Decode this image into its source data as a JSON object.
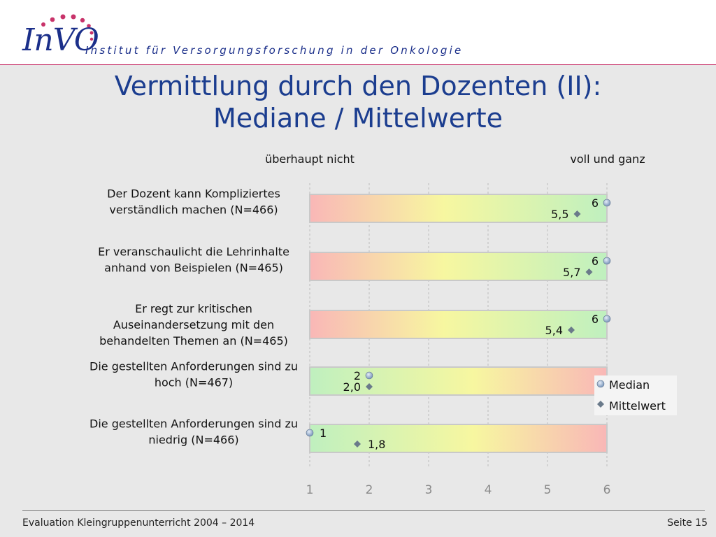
{
  "header": {
    "logo_text": "InVO",
    "subtitle": "Institut für Versorgungsforschung in der Onkologie"
  },
  "title": {
    "line1": "Vermittlung durch den Dozenten (II):",
    "line2": "Mediane / Mittelwerte"
  },
  "chart_data": {
    "type": "scatter",
    "scale_low_label": "überhaupt nicht",
    "scale_high_label": "voll und ganz",
    "xlim": [
      1,
      6
    ],
    "x_ticks": [
      "1",
      "2",
      "3",
      "4",
      "5",
      "6"
    ],
    "legend": {
      "median": "Median",
      "mean": "Mittelwert",
      "placement": "right"
    },
    "colors": {
      "red": "#f9b7b7",
      "yellow": "#f7f7a0",
      "green": "#bff0bf",
      "median_marker": "#8ba6c8",
      "mean_marker": "#6a7a8a"
    },
    "items": [
      {
        "label_lines": [
          "Der Dozent kann Kompliziertes",
          "verständlich machen (N=466)"
        ],
        "median": 6,
        "mean": 5.5,
        "median_label": "6",
        "mean_label": "5,5",
        "direction": "red-to-green"
      },
      {
        "label_lines": [
          "Er veranschaulicht die Lehrinhalte",
          "anhand von Beispielen (N=465)"
        ],
        "median": 6,
        "mean": 5.7,
        "median_label": "6",
        "mean_label": "5,7",
        "direction": "red-to-green"
      },
      {
        "label_lines": [
          "Er regt zur kritischen",
          "Auseinandersetzung mit den",
          "behandelten Themen an (N=465)"
        ],
        "median": 6,
        "mean": 5.4,
        "median_label": "6",
        "mean_label": "5,4",
        "direction": "red-to-green"
      },
      {
        "label_lines": [
          "Die gestellten Anforderungen sind zu",
          "hoch (N=467)"
        ],
        "median": 2,
        "mean": 2.0,
        "median_label": "2",
        "mean_label": "2,0",
        "direction": "green-to-red"
      },
      {
        "label_lines": [
          "Die gestellten Anforderungen sind zu",
          "niedrig (N=466)"
        ],
        "median": 1,
        "mean": 1.8,
        "median_label": "1",
        "mean_label": "1,8",
        "direction": "green-to-red"
      }
    ]
  },
  "footer": {
    "left": "Evaluation Kleingruppenunterricht 2004 – 2014",
    "right": "Seite 15"
  }
}
